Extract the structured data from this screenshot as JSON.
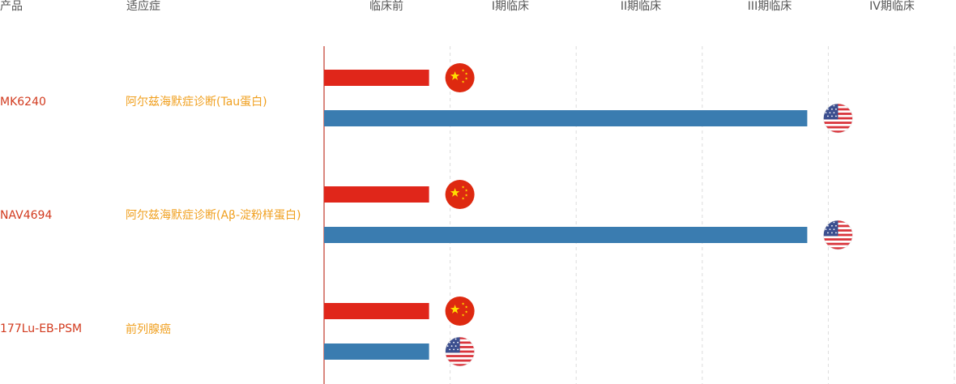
{
  "header": {
    "product_label": "产品",
    "indication_label": "适应症",
    "phases": [
      "临床前",
      "I期临床",
      "II期临床",
      "III期临床",
      "IV期临床"
    ]
  },
  "rows": [
    {
      "product": "MK6240",
      "indication": "阿尔兹海默症诊断(Tau蛋白)"
    },
    {
      "product": "NAV4694",
      "indication": "阿尔兹海默症诊断(Aβ-淀粉样蛋白)"
    },
    {
      "product": "177Lu-EB-PSM",
      "indication": "前列腺癌"
    }
  ],
  "colors": {
    "china": "#e0261a",
    "usa": "#3a7cb0",
    "axis": "#c0392b",
    "grid": "#dddddd",
    "product_text": "#d23a1e",
    "indication_text": "#f0a020",
    "header_text": "#555555"
  },
  "chart_data": {
    "type": "bar",
    "orientation": "horizontal",
    "categories": [
      "MK6240",
      "NAV4694",
      "177Lu-EB-PSM"
    ],
    "x_categories": [
      "临床前",
      "I期临床",
      "II期临床",
      "III期临床",
      "IV期临床"
    ],
    "series": [
      {
        "flag": "china-flag",
        "color": "#e0261a",
        "values": [
          1,
          1,
          1
        ]
      },
      {
        "flag": "usa-flag",
        "color": "#3a7cb0",
        "values": [
          4,
          4,
          1
        ]
      }
    ],
    "xlim": [
      0,
      5
    ],
    "grid": true
  }
}
